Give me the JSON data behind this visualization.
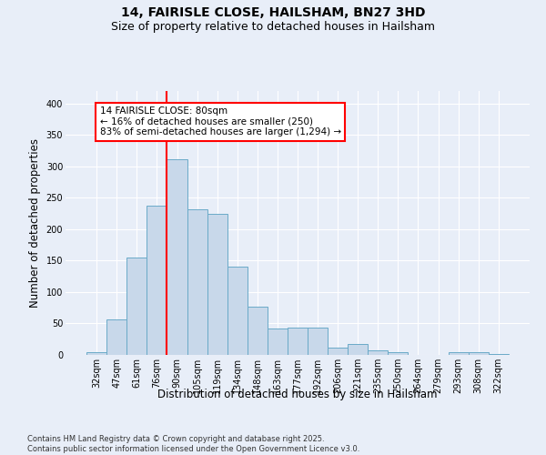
{
  "title_line1": "14, FAIRISLE CLOSE, HAILSHAM, BN27 3HD",
  "title_line2": "Size of property relative to detached houses in Hailsham",
  "xlabel": "Distribution of detached houses by size in Hailsham",
  "ylabel": "Number of detached properties",
  "footer": "Contains HM Land Registry data © Crown copyright and database right 2025.\nContains public sector information licensed under the Open Government Licence v3.0.",
  "categories": [
    "32sqm",
    "47sqm",
    "61sqm",
    "76sqm",
    "90sqm",
    "105sqm",
    "119sqm",
    "134sqm",
    "148sqm",
    "163sqm",
    "177sqm",
    "192sqm",
    "206sqm",
    "221sqm",
    "235sqm",
    "250sqm",
    "264sqm",
    "279sqm",
    "293sqm",
    "308sqm",
    "322sqm"
  ],
  "values": [
    4,
    57,
    155,
    237,
    311,
    232,
    225,
    140,
    77,
    42,
    43,
    43,
    12,
    17,
    7,
    4,
    0,
    0,
    4,
    4,
    2
  ],
  "bar_color": "#c8d8ea",
  "bar_edge_color": "#6aaac8",
  "vline_color": "red",
  "vline_x": 3.5,
  "annotation_text": "14 FAIRISLE CLOSE: 80sqm\n← 16% of detached houses are smaller (250)\n83% of semi-detached houses are larger (1,294) →",
  "annotation_box_color": "white",
  "annotation_box_edge_color": "red",
  "ylim": [
    0,
    420
  ],
  "yticks": [
    0,
    50,
    100,
    150,
    200,
    250,
    300,
    350,
    400
  ],
  "bg_color": "#e8eef8",
  "plot_bg_color": "#e8eef8",
  "grid_color": "white",
  "title_fontsize": 10,
  "subtitle_fontsize": 9,
  "tick_fontsize": 7,
  "label_fontsize": 8.5,
  "footer_fontsize": 6
}
